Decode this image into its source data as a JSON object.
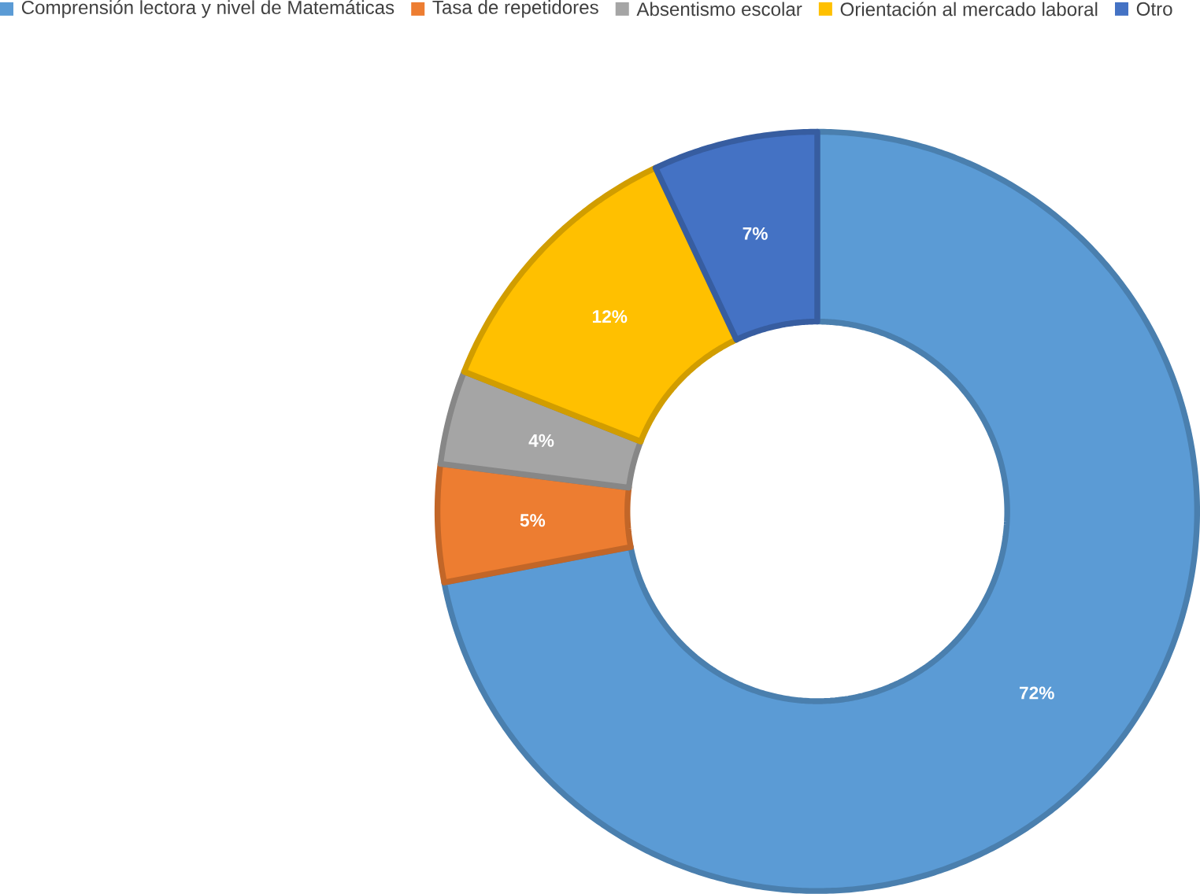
{
  "chart_data": {
    "type": "donut",
    "categories": [
      "Comprensión lectora y nivel de Matemáticas",
      "Tasa de repetidores",
      "Absentismo escolar",
      "Orientación al mercado laboral",
      "Otro"
    ],
    "values": [
      72,
      5,
      4,
      12,
      7
    ],
    "value_labels": [
      "72%",
      "5%",
      "4%",
      "12%",
      "7%"
    ],
    "colors": [
      "#5b9bd5",
      "#ed7d31",
      "#a5a5a5",
      "#ffc000",
      "#4472c4"
    ],
    "legend": "top"
  }
}
